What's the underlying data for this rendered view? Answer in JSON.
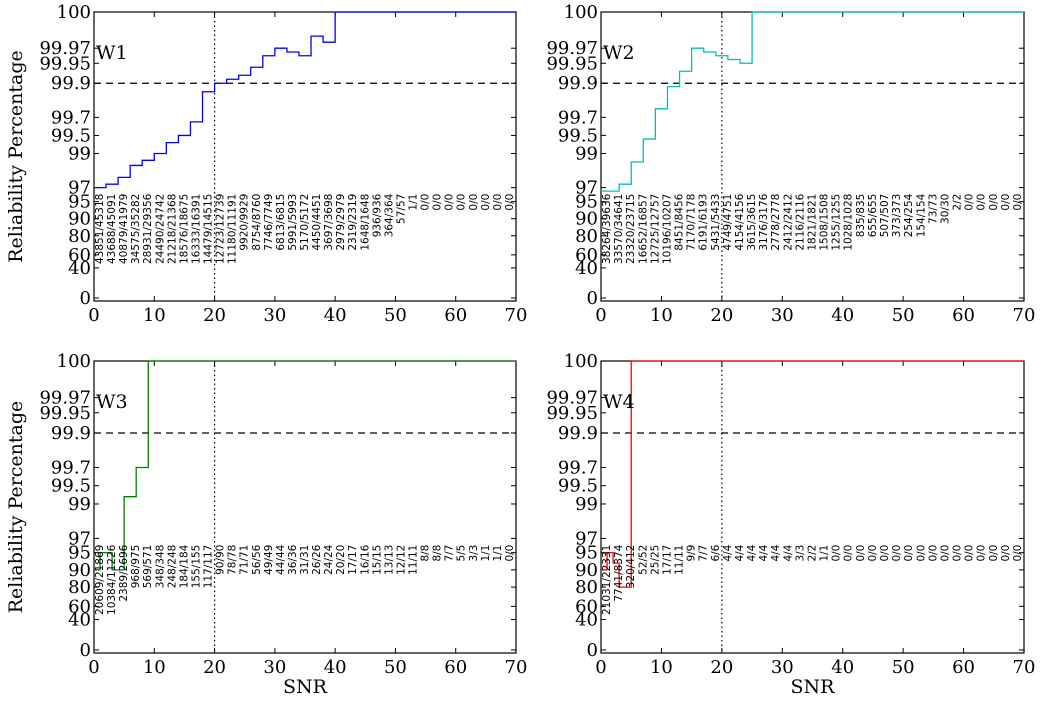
{
  "chart_data": [
    {
      "type": "line",
      "label": "W1",
      "color": "#0000ff",
      "xlabel": "",
      "ylabel": "Reliability Percentage",
      "xlim": [
        0,
        70
      ],
      "reference_line": 99.9,
      "snr_marker": 20,
      "x": [
        0,
        2,
        4,
        6,
        8,
        10,
        12,
        14,
        16,
        18,
        20,
        22,
        24,
        26,
        28,
        30,
        32,
        34,
        36,
        38,
        40,
        42,
        44,
        46,
        48,
        50,
        52,
        54,
        56,
        58,
        60,
        62,
        64,
        66,
        68,
        70
      ],
      "y": [
        97.0,
        97.2,
        97.6,
        98.3,
        98.6,
        99.0,
        99.3,
        99.5,
        99.65,
        99.85,
        99.9,
        99.91,
        99.92,
        99.94,
        99.96,
        99.97,
        99.965,
        99.96,
        99.98,
        99.975,
        100,
        100,
        100,
        100,
        100,
        100,
        100,
        100,
        100,
        100,
        100,
        100,
        100,
        100,
        100,
        100
      ],
      "counts": [
        "43851/45318",
        "43688/45091",
        "40879/41979",
        "34575/35282",
        "28931/29356",
        "24490/24742",
        "21218/21368",
        "18576/18675",
        "16333/16391",
        "14479/14515",
        "12723/12739",
        "11180/11191",
        "9920/9929",
        "8754/8760",
        "7746/7749",
        "6813/6815",
        "5991/5993",
        "5170/5172",
        "4450/4451",
        "3697/3698",
        "2979/2979",
        "2319/2319",
        "1648/1648",
        "936/936",
        "364/364",
        "57/57",
        "1/1",
        "0/0",
        "0/0",
        "0/0",
        "0/0",
        "0/0",
        "0/0",
        "0/0",
        "0/0"
      ]
    },
    {
      "type": "line",
      "label": "W2",
      "color": "#00bfbf",
      "xlabel": "",
      "ylabel": "",
      "xlim": [
        0,
        70
      ],
      "reference_line": 99.9,
      "snr_marker": 20,
      "x": [
        0,
        3,
        5,
        7,
        9,
        11,
        13,
        15,
        17,
        19,
        21,
        23,
        25,
        70
      ],
      "y": [
        96.5,
        97.2,
        98.5,
        99.4,
        99.75,
        99.88,
        99.93,
        99.97,
        99.965,
        99.96,
        99.955,
        99.95,
        100,
        100
      ],
      "counts": [
        "38264/39636",
        "33570/34641",
        "23320/23715",
        "16652/16857",
        "12725/12757",
        "10196/10207",
        "8451/8456",
        "7170/7178",
        "6191/6193",
        "5431/5433",
        "4749/4751",
        "4154/4156",
        "3615/3615",
        "3176/3176",
        "2778/2778",
        "2412/2412",
        "2116/2116",
        "1821/1821",
        "1508/1508",
        "1255/1255",
        "1028/1028",
        "835/835",
        "655/655",
        "507/507",
        "373/373",
        "254/254",
        "154/154",
        "73/73",
        "30/30",
        "2/2",
        "0/0",
        "0/0",
        "0/0",
        "0/0",
        "0/0"
      ]
    },
    {
      "type": "line",
      "label": "W3",
      "color": "#008000",
      "xlabel": "SNR",
      "ylabel": "Reliability Percentage",
      "xlim": [
        0,
        70
      ],
      "reference_line": 99.9,
      "snr_marker": 20,
      "x": [
        0,
        1,
        3,
        5,
        7,
        9,
        70
      ],
      "y": [
        90,
        95,
        90,
        99.2,
        99.7,
        100,
        100
      ],
      "counts": [
        "20609/21869",
        "10384/11226",
        "2389/2696",
        "968/975",
        "569/571",
        "348/348",
        "248/248",
        "184/184",
        "155/155",
        "117/117",
        "90/90",
        "78/78",
        "71/71",
        "56/56",
        "49/49",
        "44/44",
        "36/36",
        "31/31",
        "26/26",
        "24/24",
        "20/20",
        "17/17",
        "16/16",
        "15/15",
        "13/13",
        "12/12",
        "11/11",
        "8/8",
        "8/8",
        "7/7",
        "5/5",
        "3/3",
        "1/1",
        "1/1",
        "0/0"
      ]
    },
    {
      "type": "line",
      "label": "W4",
      "color": "#ff0000",
      "xlabel": "SNR",
      "ylabel": "",
      "xlim": [
        0,
        70
      ],
      "reference_line": 99.9,
      "snr_marker": 20,
      "x": [
        0,
        1,
        2,
        3,
        5,
        70
      ],
      "y": [
        90,
        95,
        92,
        80,
        100,
        100
      ],
      "counts": [
        "21031/22331",
        "7741/8374",
        "320/412",
        "52/52",
        "25/25",
        "17/17",
        "11/11",
        "9/9",
        "7/7",
        "6/6",
        "4/4",
        "4/4",
        "4/4",
        "4/4",
        "4/4",
        "4/4",
        "3/3",
        "2/2",
        "1/1",
        "0/0",
        "0/0",
        "0/0",
        "0/0",
        "0/0",
        "0/0",
        "0/0",
        "0/0",
        "0/0",
        "0/0",
        "0/0",
        "0/0",
        "0/0",
        "0/0",
        "0/0",
        "0/0"
      ]
    }
  ],
  "x_ticks": [
    "0",
    "10",
    "20",
    "30",
    "40",
    "50",
    "60",
    "70"
  ],
  "y_ticks": [
    "100",
    "99.97",
    "99.95",
    "99.9",
    "99.7",
    "99.5",
    "99",
    "97",
    "95",
    "90",
    "80",
    "60",
    "40",
    "0"
  ]
}
